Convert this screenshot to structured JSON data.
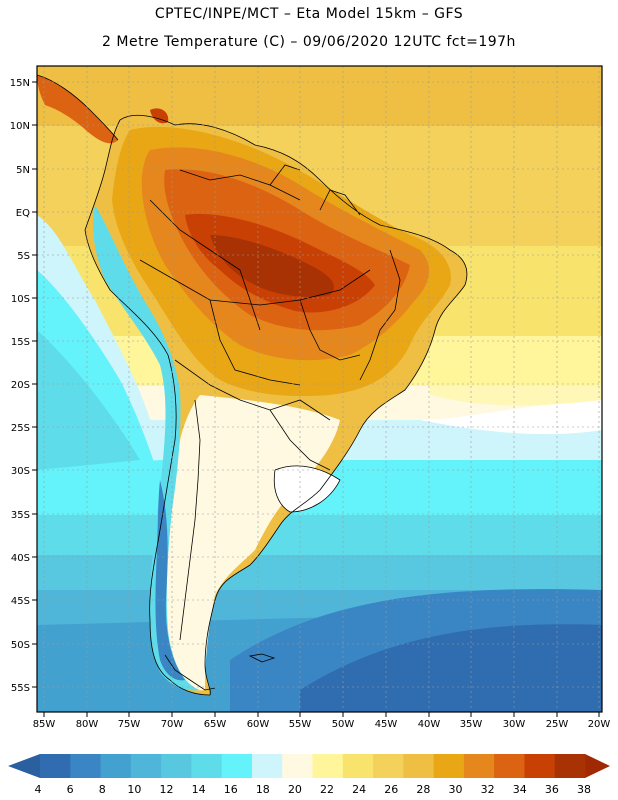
{
  "title_line1": "CPTEC/INPE/MCT –  Eta Model 15km – GFS",
  "title_line2": "2 Metre Temperature (C) – 09/06/2020 12UTC fct=197h",
  "lat_labels": [
    "15N",
    "10N",
    "5N",
    "EQ",
    "5S",
    "10S",
    "15S",
    "20S",
    "25S",
    "30S",
    "35S",
    "40S",
    "45S",
    "50S",
    "55S"
  ],
  "lon_labels": [
    "85W",
    "80W",
    "75W",
    "70W",
    "65W",
    "60W",
    "55W",
    "50W",
    "45W",
    "40W",
    "35W",
    "30W",
    "25W",
    "20W"
  ],
  "colorbar": {
    "levels": [
      "4",
      "6",
      "8",
      "10",
      "12",
      "14",
      "16",
      "18",
      "20",
      "22",
      "24",
      "26",
      "28",
      "30",
      "32",
      "34",
      "36",
      "38"
    ],
    "colors": [
      "#2f6db0",
      "#3a85c4",
      "#43a1cf",
      "#4fb6d9",
      "#57c8e0",
      "#5fdcea",
      "#64f2fb",
      "#cdf5fb",
      "#fff9e2",
      "#fff59a",
      "#f8e46d",
      "#f3d15a",
      "#efbf43",
      "#e9a716",
      "#e6871d",
      "#dc6311",
      "#c94005",
      "#a83204"
    ],
    "low_arrow_color": "#2a5fa0",
    "high_arrow_color": "#a02904"
  }
}
